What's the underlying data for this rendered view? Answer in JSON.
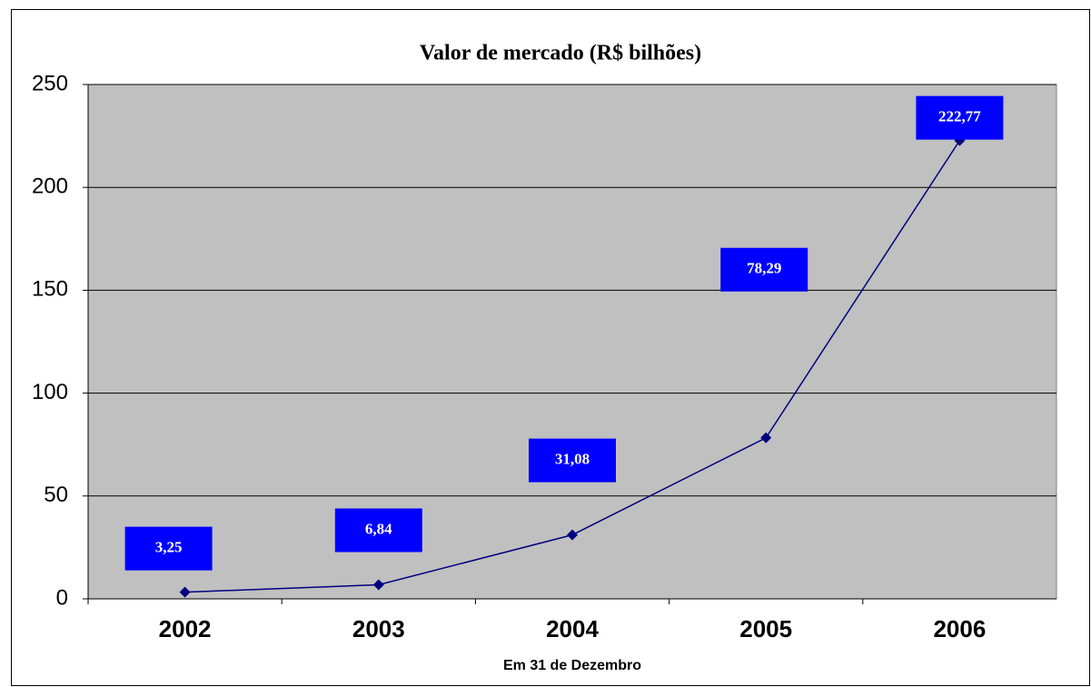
{
  "chart_data": {
    "type": "line",
    "title": "Valor de mercado (R$ bilhões)",
    "x_label": "Em 31 de Dezembro",
    "categories": [
      "2002",
      "2003",
      "2004",
      "2005",
      "2006"
    ],
    "values": [
      3.25,
      6.84,
      31.08,
      78.29,
      222.77
    ],
    "value_labels": [
      "3,25",
      "6,84",
      "31,08",
      "78,29",
      "222,77"
    ],
    "color": "#000080",
    "label_color": "#0000ff",
    "ylim": [
      0,
      250
    ],
    "yticks": [
      0,
      50,
      100,
      150,
      200,
      250
    ],
    "grid": true
  }
}
